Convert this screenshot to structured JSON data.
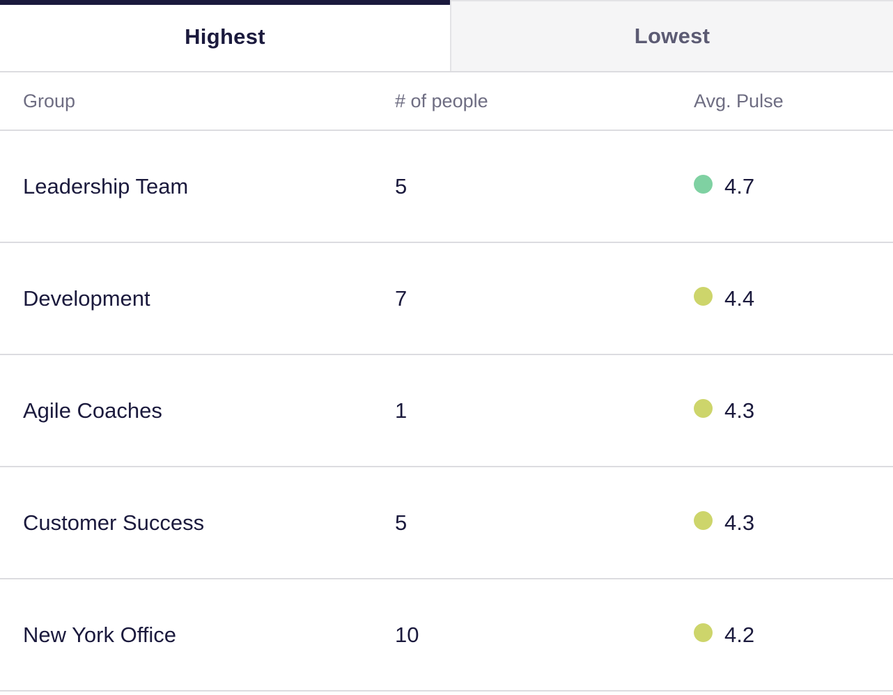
{
  "tabs": {
    "highest_label": "Highest",
    "lowest_label": "Lowest"
  },
  "table": {
    "headers": {
      "group": "Group",
      "people": "# of people",
      "pulse": "Avg. Pulse"
    },
    "rows": [
      {
        "group": "Leadership Team",
        "people": "5",
        "pulse": "4.7",
        "pulse_color": "#7fd1a2"
      },
      {
        "group": "Development",
        "people": "7",
        "pulse": "4.4",
        "pulse_color": "#cdd56b"
      },
      {
        "group": "Agile Coaches",
        "people": "1",
        "pulse": "4.3",
        "pulse_color": "#cdd56b"
      },
      {
        "group": "Customer Success",
        "people": "5",
        "pulse": "4.3",
        "pulse_color": "#cdd56b"
      },
      {
        "group": "New York Office",
        "people": "10",
        "pulse": "4.2",
        "pulse_color": "#cdd56b"
      }
    ]
  },
  "colors": {
    "active_tab_indicator": "#1b1a3d",
    "inactive_tab_background": "#f5f5f6",
    "divider": "#dcdce0"
  }
}
